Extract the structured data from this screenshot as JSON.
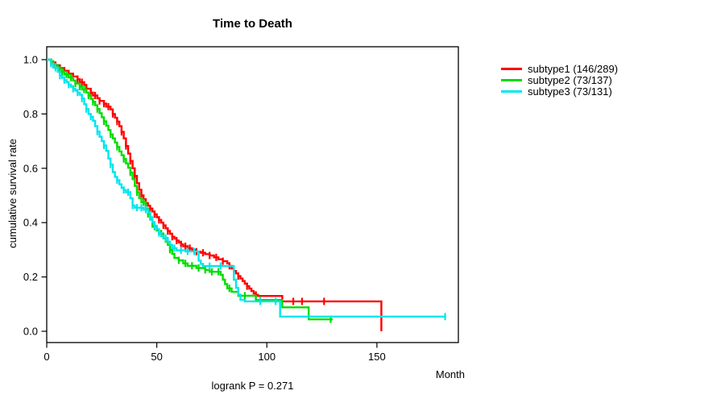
{
  "chart_data": {
    "type": "line",
    "style": "step",
    "kind": "kaplan-meier-survival",
    "title": "Time to Death",
    "xlabel": "Month",
    "ylabel": "cumulative survival rate",
    "footnote": "logrank P = 0.271",
    "xlim": [
      0,
      187
    ],
    "ylim": [
      0,
      1.0
    ],
    "x_ticks": [
      0,
      50,
      100,
      150
    ],
    "x_tick_labels": [
      "0",
      "50",
      "100",
      "150"
    ],
    "y_ticks": [
      0.0,
      0.2,
      0.4,
      0.6,
      0.8,
      1.0
    ],
    "y_tick_labels": [
      "0.0",
      "0.2",
      "0.4",
      "0.6",
      "0.8",
      "1.0"
    ],
    "grid": false,
    "legend_position": "right-outside",
    "axis_color": "#000000",
    "series": [
      {
        "name": "subtype1",
        "label": "subtype1 (146/289)",
        "color": "#ff0000",
        "events": 146,
        "total": 289,
        "end_month": null,
        "steps": [
          [
            0,
            1.0
          ],
          [
            2,
            0.99
          ],
          [
            4,
            0.979
          ],
          [
            6,
            0.969
          ],
          [
            8,
            0.959
          ],
          [
            10,
            0.948
          ],
          [
            12,
            0.938
          ],
          [
            14,
            0.928
          ],
          [
            15,
            0.917
          ],
          [
            17,
            0.907
          ],
          [
            18,
            0.893
          ],
          [
            20,
            0.879
          ],
          [
            21,
            0.868
          ],
          [
            23,
            0.858
          ],
          [
            24,
            0.848
          ],
          [
            26,
            0.838
          ],
          [
            27,
            0.827
          ],
          [
            29,
            0.817
          ],
          [
            30,
            0.8
          ],
          [
            31,
            0.786
          ],
          [
            32,
            0.772
          ],
          [
            33,
            0.755
          ],
          [
            34,
            0.734
          ],
          [
            35,
            0.71
          ],
          [
            36,
            0.682
          ],
          [
            37,
            0.654
          ],
          [
            38,
            0.627
          ],
          [
            39,
            0.6
          ],
          [
            40,
            0.572
          ],
          [
            41,
            0.545
          ],
          [
            42,
            0.521
          ],
          [
            43,
            0.5
          ],
          [
            44,
            0.486
          ],
          [
            45,
            0.472
          ],
          [
            46,
            0.462
          ],
          [
            47,
            0.452
          ],
          [
            48,
            0.441
          ],
          [
            49,
            0.431
          ],
          [
            50,
            0.42
          ],
          [
            51,
            0.41
          ],
          [
            52,
            0.4
          ],
          [
            53,
            0.39
          ],
          [
            54,
            0.379
          ],
          [
            55,
            0.369
          ],
          [
            56,
            0.359
          ],
          [
            57,
            0.348
          ],
          [
            58,
            0.341
          ],
          [
            59,
            0.334
          ],
          [
            60,
            0.327
          ],
          [
            61,
            0.32
          ],
          [
            62,
            0.313
          ],
          [
            64,
            0.306
          ],
          [
            66,
            0.299
          ],
          [
            68,
            0.293
          ],
          [
            70,
            0.289
          ],
          [
            72,
            0.284
          ],
          [
            74,
            0.279
          ],
          [
            76,
            0.272
          ],
          [
            78,
            0.265
          ],
          [
            80,
            0.258
          ],
          [
            82,
            0.25
          ],
          [
            83,
            0.241
          ],
          [
            84,
            0.231
          ],
          [
            85,
            0.222
          ],
          [
            86,
            0.213
          ],
          [
            87,
            0.203
          ],
          [
            88,
            0.194
          ],
          [
            89,
            0.185
          ],
          [
            90,
            0.175
          ],
          [
            91,
            0.166
          ],
          [
            92,
            0.157
          ],
          [
            93,
            0.148
          ],
          [
            94,
            0.139
          ],
          [
            95,
            0.134
          ],
          [
            96,
            0.13
          ],
          [
            107,
            0.11
          ],
          [
            152,
            0.0
          ]
        ],
        "censor_months": [
          2,
          4,
          6,
          8,
          10,
          12,
          14,
          16,
          18,
          20,
          22,
          24,
          26,
          28,
          30,
          32,
          34,
          36,
          38,
          40,
          43,
          45,
          47,
          49,
          51,
          53,
          55,
          57,
          59,
          61,
          63,
          65,
          68,
          71,
          74,
          77,
          80,
          83,
          87,
          91,
          95,
          112,
          116,
          126
        ]
      },
      {
        "name": "subtype2",
        "label": "subtype2 (73/137)",
        "color": "#00dd00",
        "events": 73,
        "total": 137,
        "end_month": 130,
        "steps": [
          [
            0,
            1.0
          ],
          [
            2,
            0.985
          ],
          [
            4,
            0.971
          ],
          [
            6,
            0.956
          ],
          [
            8,
            0.945
          ],
          [
            10,
            0.934
          ],
          [
            12,
            0.923
          ],
          [
            13,
            0.912
          ],
          [
            15,
            0.901
          ],
          [
            16,
            0.89
          ],
          [
            18,
            0.879
          ],
          [
            19,
            0.868
          ],
          [
            20,
            0.856
          ],
          [
            21,
            0.845
          ],
          [
            22,
            0.832
          ],
          [
            23,
            0.818
          ],
          [
            24,
            0.803
          ],
          [
            25,
            0.788
          ],
          [
            26,
            0.773
          ],
          [
            27,
            0.757
          ],
          [
            28,
            0.741
          ],
          [
            29,
            0.725
          ],
          [
            30,
            0.71
          ],
          [
            31,
            0.695
          ],
          [
            32,
            0.679
          ],
          [
            33,
            0.662
          ],
          [
            34,
            0.648
          ],
          [
            35,
            0.634
          ],
          [
            36,
            0.618
          ],
          [
            37,
            0.602
          ],
          [
            38,
            0.585
          ],
          [
            39,
            0.56
          ],
          [
            40,
            0.535
          ],
          [
            41,
            0.512
          ],
          [
            42,
            0.49
          ],
          [
            43,
            0.475
          ],
          [
            45,
            0.452
          ],
          [
            46,
            0.432
          ],
          [
            47,
            0.412
          ],
          [
            48,
            0.385
          ],
          [
            50,
            0.371
          ],
          [
            51,
            0.36
          ],
          [
            53,
            0.342
          ],
          [
            54,
            0.33
          ],
          [
            55,
            0.318
          ],
          [
            56,
            0.3
          ],
          [
            57,
            0.285
          ],
          [
            58,
            0.27
          ],
          [
            60,
            0.261
          ],
          [
            62,
            0.25
          ],
          [
            64,
            0.241
          ],
          [
            68,
            0.233
          ],
          [
            72,
            0.226
          ],
          [
            74,
            0.219
          ],
          [
            79,
            0.208
          ],
          [
            80,
            0.19
          ],
          [
            81,
            0.174
          ],
          [
            82,
            0.158
          ],
          [
            84,
            0.145
          ],
          [
            87,
            0.131
          ],
          [
            95,
            0.115
          ],
          [
            107,
            0.088
          ],
          [
            119,
            0.044
          ]
        ],
        "censor_months": [
          3,
          5,
          7,
          9,
          11,
          13,
          15,
          17,
          19,
          21,
          23,
          26,
          29,
          32,
          35,
          38,
          41,
          44,
          46,
          49,
          52,
          56,
          60,
          63,
          66,
          69,
          72,
          75,
          78,
          83,
          90,
          97,
          129
        ]
      },
      {
        "name": "subtype3",
        "label": "subtype3 (73/131)",
        "color": "#00e5ee",
        "events": 73,
        "total": 131,
        "end_month": 181,
        "steps": [
          [
            0,
            1.0
          ],
          [
            2,
            0.985
          ],
          [
            3,
            0.97
          ],
          [
            5,
            0.955
          ],
          [
            6,
            0.941
          ],
          [
            7,
            0.933
          ],
          [
            8,
            0.925
          ],
          [
            9,
            0.917
          ],
          [
            10,
            0.908
          ],
          [
            11,
            0.9
          ],
          [
            12,
            0.893
          ],
          [
            13,
            0.886
          ],
          [
            14,
            0.879
          ],
          [
            15,
            0.871
          ],
          [
            16,
            0.857
          ],
          [
            17,
            0.836
          ],
          [
            18,
            0.818
          ],
          [
            19,
            0.8
          ],
          [
            20,
            0.79
          ],
          [
            21,
            0.775
          ],
          [
            22,
            0.755
          ],
          [
            23,
            0.735
          ],
          [
            24,
            0.716
          ],
          [
            25,
            0.7
          ],
          [
            26,
            0.684
          ],
          [
            27,
            0.664
          ],
          [
            28,
            0.636
          ],
          [
            29,
            0.614
          ],
          [
            30,
            0.586
          ],
          [
            31,
            0.568
          ],
          [
            32,
            0.556
          ],
          [
            33,
            0.541
          ],
          [
            34,
            0.528
          ],
          [
            35,
            0.52
          ],
          [
            36,
            0.512
          ],
          [
            38,
            0.49
          ],
          [
            39,
            0.463
          ],
          [
            40,
            0.455
          ],
          [
            44,
            0.448
          ],
          [
            46,
            0.438
          ],
          [
            47,
            0.42
          ],
          [
            48,
            0.402
          ],
          [
            49,
            0.389
          ],
          [
            50,
            0.376
          ],
          [
            51,
            0.362
          ],
          [
            52,
            0.351
          ],
          [
            53,
            0.344
          ],
          [
            55,
            0.33
          ],
          [
            56,
            0.318
          ],
          [
            57,
            0.306
          ],
          [
            59,
            0.298
          ],
          [
            63,
            0.294
          ],
          [
            69,
            0.26
          ],
          [
            70,
            0.248
          ],
          [
            71,
            0.24
          ],
          [
            85,
            0.19
          ],
          [
            86,
            0.16
          ],
          [
            87,
            0.135
          ],
          [
            88,
            0.116
          ],
          [
            90,
            0.11
          ],
          [
            106,
            0.054
          ]
        ],
        "censor_months": [
          2,
          4,
          6,
          8,
          10,
          12,
          14,
          16,
          18,
          20,
          23,
          26,
          29,
          32,
          35,
          37,
          39,
          41,
          43,
          45,
          47,
          49,
          51,
          54,
          58,
          61,
          64,
          67,
          74,
          79,
          97,
          104,
          181
        ]
      }
    ]
  }
}
